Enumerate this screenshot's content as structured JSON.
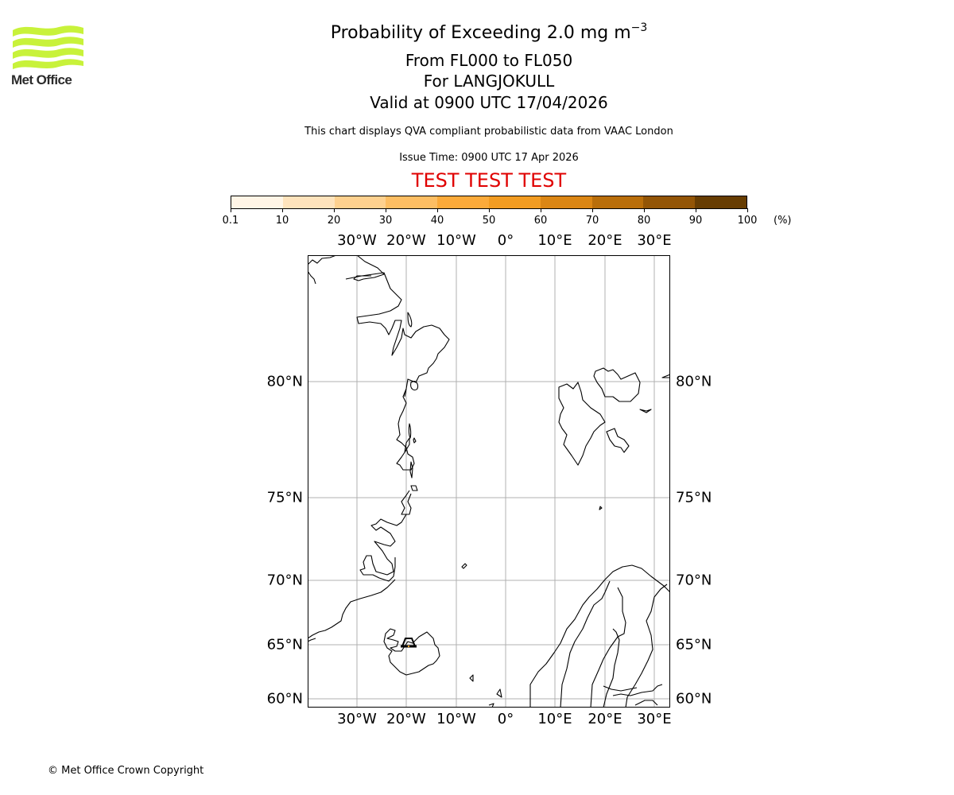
{
  "logo": {
    "text": "Met Office",
    "color": "#c8f23a"
  },
  "header": {
    "title_main": "Probability of Exceeding 2.0 mg m",
    "title_superscript": "−3",
    "levels": "From FL000 to FL050",
    "location": "For LANGJOKULL",
    "valid": "Valid at 0900 UTC 17/04/2026",
    "description": "This chart displays QVA compliant probabilistic data from VAAC London",
    "issue_time": "Issue Time: 0900 UTC 17 Apr 2026",
    "test_banner": "TEST TEST TEST",
    "test_color": "#e00000"
  },
  "colorbar": {
    "unit": "(%)",
    "ticks": [
      "0.1",
      "10",
      "20",
      "30",
      "40",
      "50",
      "60",
      "70",
      "80",
      "90",
      "100"
    ],
    "colors": [
      "#fff5e6",
      "#fee3bc",
      "#fed18f",
      "#fdbe63",
      "#fbaa3a",
      "#f29c22",
      "#db8614",
      "#b96e0a",
      "#935506",
      "#673d02"
    ]
  },
  "map": {
    "lon_labels": [
      "30°W",
      "20°W",
      "10°W",
      "0°",
      "10°E",
      "20°E",
      "30°E"
    ],
    "lat_labels": [
      "80°N",
      "75°N",
      "70°N",
      "65°N",
      "60°N"
    ],
    "volcano_marker": "LANGJOKULL",
    "gridline_color": "#b0b0b0"
  },
  "chart_data": {
    "type": "heatmap",
    "title": "Probability of Exceeding 2.0 mg m-3",
    "subtitle": "From FL000 to FL050 | For LANGJOKULL | Valid at 0900 UTC 17/04/2026",
    "colorbar_label": "(%)",
    "colorbar_bins": [
      0.1,
      10,
      20,
      30,
      40,
      50,
      60,
      70,
      80,
      90,
      100
    ],
    "x_ticks": [
      "30°W",
      "20°W",
      "10°W",
      "0°",
      "10°E",
      "20°E",
      "30°E"
    ],
    "y_ticks": [
      "60°N",
      "65°N",
      "70°N",
      "75°N",
      "80°N"
    ],
    "extent": {
      "lon": [
        -40,
        33
      ],
      "lat": [
        59.5,
        86
      ]
    },
    "grid": true,
    "values": []
  },
  "footer": {
    "copyright": "© Met Office Crown Copyright"
  }
}
